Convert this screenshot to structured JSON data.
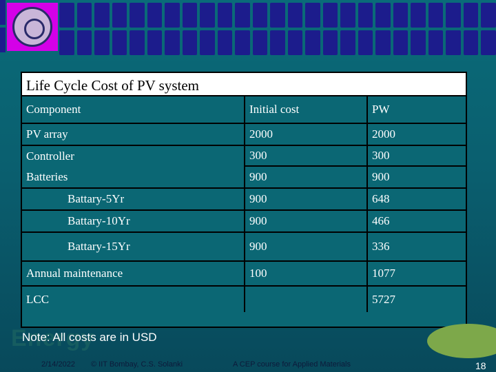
{
  "title": "Life Cycle Cost of PV system",
  "columns": [
    "Component",
    "Initial cost",
    "PW"
  ],
  "rows": [
    {
      "component": "PV array",
      "initial": "2000",
      "pw": "2000"
    },
    {
      "component": "Controller",
      "initial": "300",
      "pw": "300"
    },
    {
      "component": "Batteries",
      "initial": "900",
      "pw": "900"
    },
    {
      "component": "Battary-5Yr",
      "initial": "900",
      "pw": "648"
    },
    {
      "component": "Battary-10Yr",
      "initial": "900",
      "pw": "466"
    },
    {
      "component": "Battary-15Yr",
      "initial": "900",
      "pw": "336"
    },
    {
      "component": "Annual maintenance",
      "initial": "100",
      "pw": "1077"
    },
    {
      "component": "LCC",
      "initial": "",
      "pw": "5727"
    }
  ],
  "note": "Note: All costs are in USD",
  "background_text": "Energy",
  "footer": {
    "date": "2/14/2022",
    "author": "© IIT Bombay, C.S. Solanki",
    "course": "A CEP course for Applied Materials",
    "slide_number": "18"
  },
  "colors": {
    "background": "#0a6b79",
    "logo_bg": "#d400e8",
    "grid_squares": "#1c1c8c",
    "title_bg": "#ffffff"
  }
}
